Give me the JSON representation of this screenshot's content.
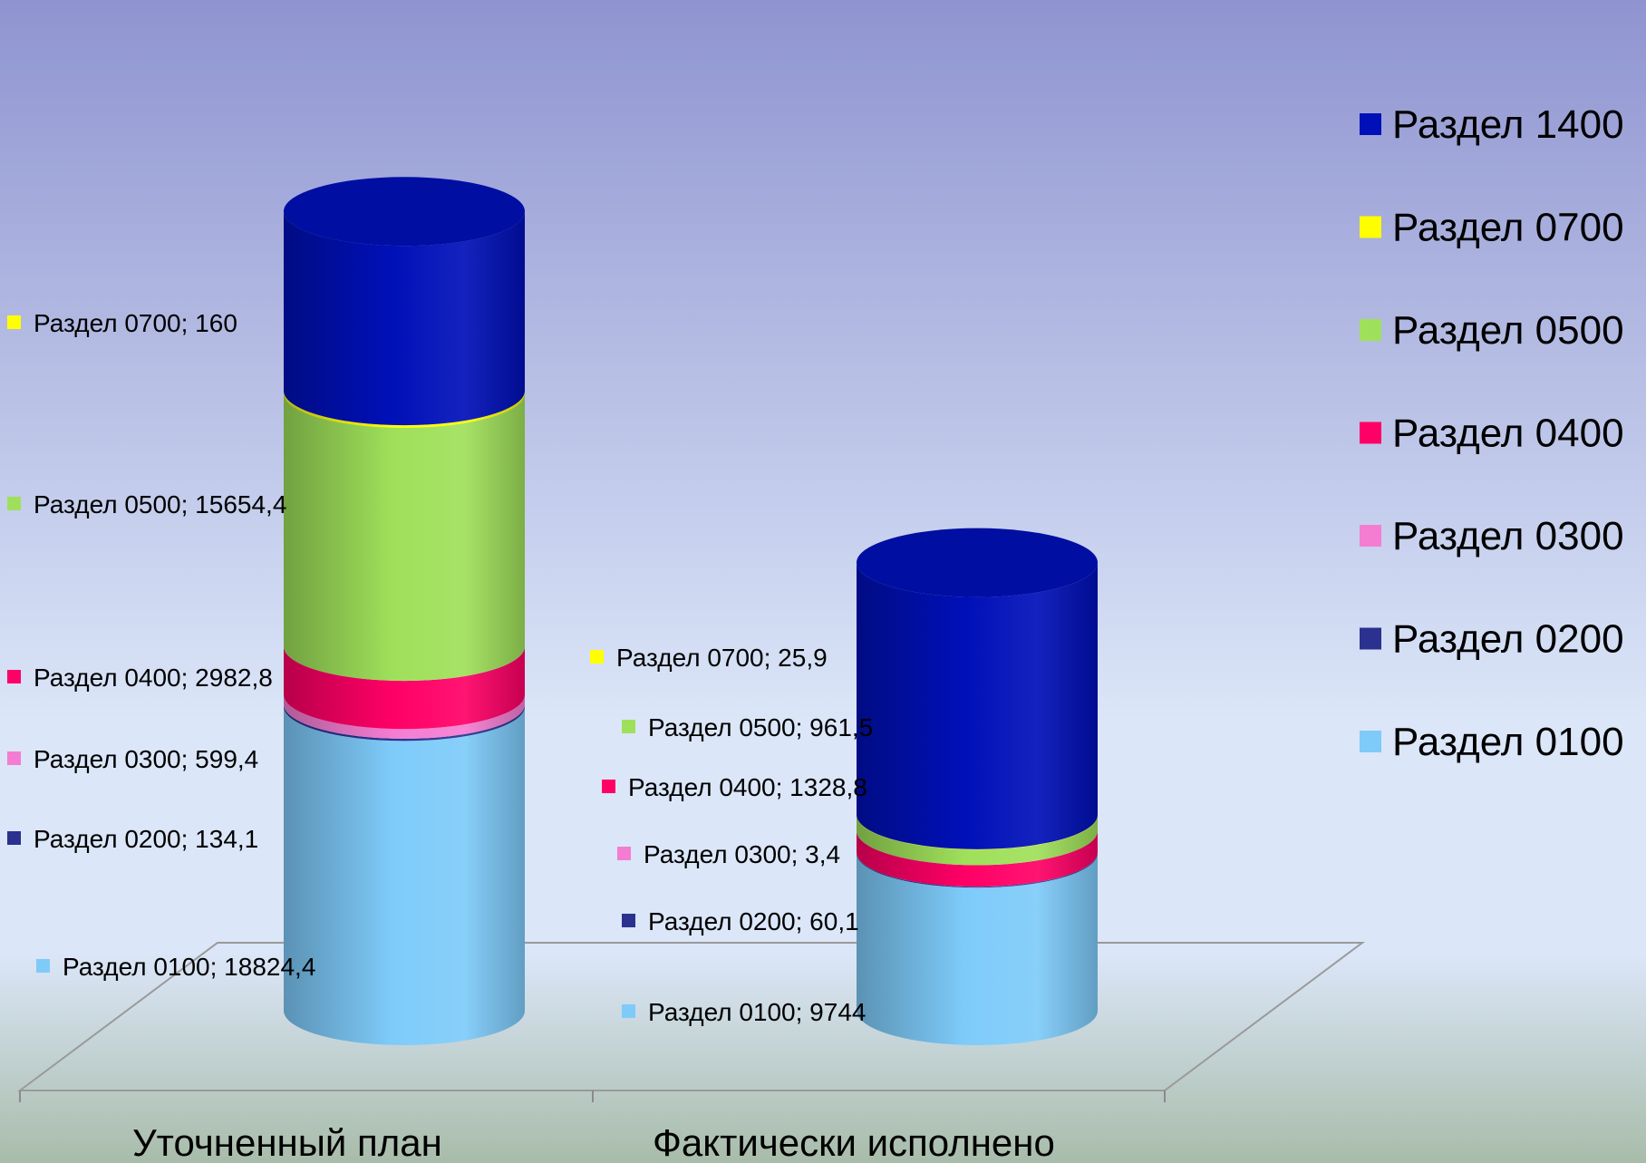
{
  "chart_data": {
    "type": "bar",
    "subtype": "stacked-3d-cylinder",
    "categories": [
      "Уточненный план",
      "Фактически исполнено"
    ],
    "series": [
      {
        "name": "Раздел 0100",
        "color": "#7ecbfa",
        "values": [
          18824.4,
          9744
        ]
      },
      {
        "name": "Раздел 0200",
        "color": "#2b318f",
        "values": [
          134.1,
          60.1
        ]
      },
      {
        "name": "Раздел 0300",
        "color": "#f47dd2",
        "values": [
          599.4,
          3.4
        ]
      },
      {
        "name": "Раздел 0400",
        "color": "#ff0066",
        "values": [
          2982.8,
          1328.8
        ]
      },
      {
        "name": "Раздел 0500",
        "color": "#9fe05a",
        "values": [
          15654.4,
          961.5
        ]
      },
      {
        "name": "Раздел 0700",
        "color": "#ffff00",
        "values": [
          160,
          25.9
        ]
      },
      {
        "name": "Раздел 1400",
        "color": "#0010b8",
        "values": [
          11100,
          15600
        ]
      }
    ],
    "data_labels": [
      [
        "Раздел 0100; 18824,4",
        "Раздел 0200; 134,1",
        "Раздел 0300; 599,4",
        "Раздел 0400; 2982,8",
        "Раздел 0500; 15654,4",
        "Раздел 0700; 160"
      ],
      [
        "Раздел 0100; 9744",
        "Раздел 0200; 60,1",
        "Раздел 0300; 3,4",
        "Раздел 0400; 1328,8",
        "Раздел 0500; 961,5",
        "Раздел 0700; 25,9"
      ]
    ],
    "legend": {
      "position": "right",
      "order": [
        "Раздел 1400",
        "Раздел 0700",
        "Раздел 0500",
        "Раздел 0400",
        "Раздел 0300",
        "Раздел 0200",
        "Раздел 0100"
      ]
    },
    "grid": false,
    "background_gradient": [
      "#8f94d0",
      "#dbe6f8",
      "#a8bcaa"
    ]
  }
}
